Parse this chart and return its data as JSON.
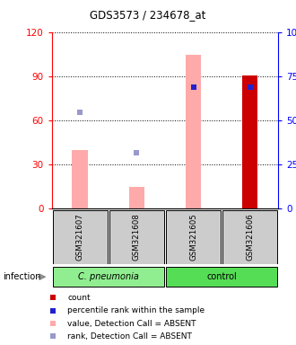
{
  "title": "GDS3573 / 234678_at",
  "samples": [
    "GSM321607",
    "GSM321608",
    "GSM321605",
    "GSM321606"
  ],
  "pink_bar_color": "#FFAAAA",
  "red_bar_color": "#CC0000",
  "blue_square_color": "#2222CC",
  "light_blue_square_color": "#9999CC",
  "values_absent": [
    40,
    15,
    105,
    null
  ],
  "ranks_absent": [
    55,
    32,
    null,
    null
  ],
  "count": [
    null,
    null,
    null,
    91
  ],
  "percentile_rank": [
    null,
    null,
    69,
    69
  ],
  "green_light": "#90EE90",
  "green_dark": "#55DD55",
  "gray_sample": "#CCCCCC",
  "legend_items": [
    {
      "color": "#CC0000",
      "label": "count"
    },
    {
      "color": "#2222CC",
      "label": "percentile rank within the sample"
    },
    {
      "color": "#FFAAAA",
      "label": "value, Detection Call = ABSENT"
    },
    {
      "color": "#9999CC",
      "label": "rank, Detection Call = ABSENT"
    }
  ]
}
